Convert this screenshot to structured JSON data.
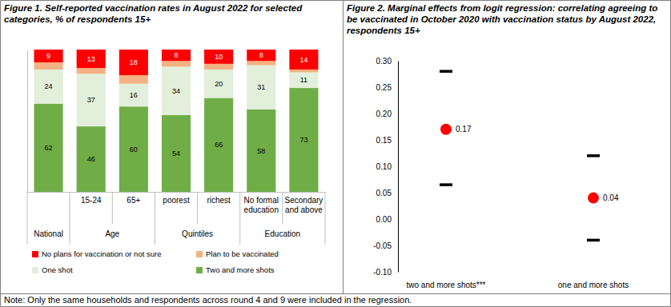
{
  "chart_data": [
    {
      "type": "bar",
      "stacked": true,
      "title": "Figure 1. Self-reported vaccination rates in August 2022 for selected categories, % of respondents 15+",
      "categories": [
        "National",
        "15-24",
        "65+",
        "poorest",
        "richest",
        "No formal education",
        "Secondary and above"
      ],
      "groups": [
        null,
        "Age",
        "Age",
        "Quintiles",
        "Quintiles",
        "Education",
        "Education"
      ],
      "series": [
        {
          "name": "Two and more shots",
          "color": "#70ad47",
          "values": [
            62,
            46,
            60,
            54,
            66,
            58,
            73
          ]
        },
        {
          "name": "One shot",
          "color": "#e2efda",
          "values": [
            24,
            37,
            16,
            34,
            20,
            31,
            11
          ]
        },
        {
          "name": "Plan to be vaccinated",
          "color": "#f4b183",
          "values": [
            5,
            4,
            6,
            4,
            4,
            3,
            2
          ],
          "data_labels": false
        },
        {
          "name": "No plans for vaccination or not sure",
          "color": "#ff0000",
          "values": [
            9,
            13,
            18,
            8,
            10,
            8,
            14
          ]
        }
      ],
      "ylim": [
        0,
        100
      ],
      "tick_labels": "x",
      "data_labels": true,
      "legend": "bottom"
    },
    {
      "type": "scatter",
      "title": "Figure 2. Marginal effects from logit regression: correlating agreeing to be vaccinated in October 2020 with vaccination status by August 2022, respondents 15+",
      "categories": [
        "two and more shots***",
        "one and more shots"
      ],
      "values": [
        0.17,
        0.04
      ],
      "lower": [
        0.065,
        -0.04
      ],
      "upper": [
        0.28,
        0.12
      ],
      "color": "#ff0000",
      "marker": "circle",
      "data_labels": true,
      "ylim": [
        -0.1,
        0.3
      ],
      "yticks": [
        {
          "value": -0.1,
          "label": "-0.10"
        },
        -0.05,
        {
          "value": 0,
          "label": "0.00"
        },
        0.05,
        {
          "value": 0.1,
          "label": "0.10"
        },
        0.15,
        {
          "value": 0.2,
          "label": "0.20"
        },
        0.25,
        {
          "value": 0.3,
          "label": "0.30"
        }
      ]
    }
  ],
  "note": "Note: Only the same households and respondents across round 4 and 9 were included in the regression."
}
